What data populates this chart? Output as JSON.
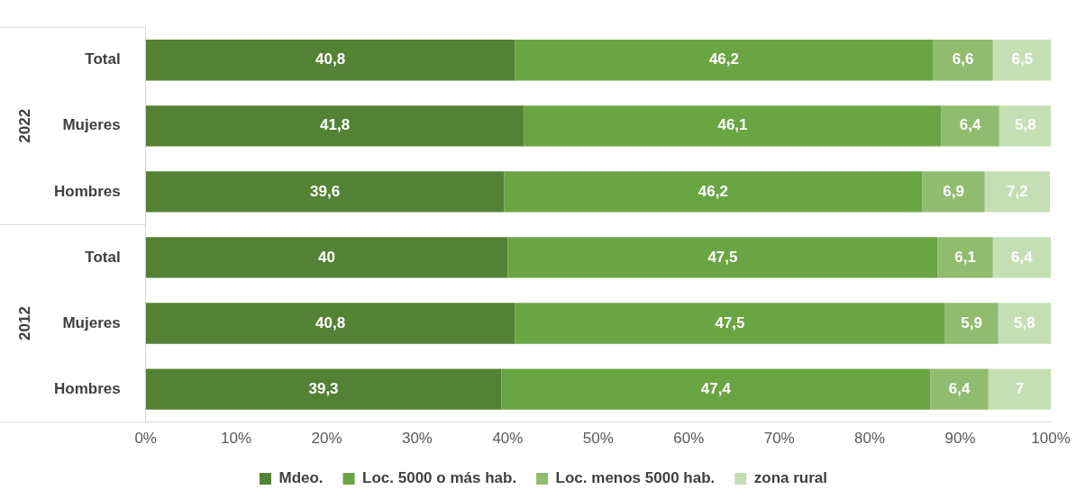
{
  "chart_data": {
    "type": "bar",
    "orientation": "horizontal",
    "stacked": true,
    "categories": [
      "Total",
      "Mujeres",
      "Hombres",
      "Total",
      "Mujeres",
      "Hombres"
    ],
    "series": [
      {
        "name": "Mdeo.",
        "color": "#548235",
        "values": [
          40.8,
          41.8,
          39.6,
          40,
          40.8,
          39.3
        ],
        "value_labels": [
          "40,8",
          "41,8",
          "39,6",
          "40",
          "40,8",
          "39,3"
        ]
      },
      {
        "name": "Loc. 5000 o más hab.",
        "color": "#6aa443",
        "values": [
          46.2,
          46.1,
          46.2,
          47.5,
          47.5,
          47.4
        ],
        "value_labels": [
          "46,2",
          "46,1",
          "46,2",
          "47,5",
          "47,5",
          "47,4"
        ]
      },
      {
        "name": "Loc. menos 5000 hab.",
        "color": "#8fbc6e",
        "values": [
          6.6,
          6.4,
          6.9,
          6.1,
          5.9,
          6.4
        ],
        "value_labels": [
          "6,6",
          "6,4",
          "6,9",
          "6,1",
          "5,9",
          "6,4"
        ]
      },
      {
        "name": "zona rural",
        "color": "#c5dfb4",
        "values": [
          6.5,
          5.8,
          7.2,
          6.4,
          5.8,
          7
        ],
        "value_labels": [
          "6,5",
          "5,8",
          "7,2",
          "6,4",
          "5,8",
          "7"
        ]
      }
    ],
    "annotations": [
      "2022",
      "2012"
    ],
    "xlim": [
      0,
      100
    ],
    "xticks": [
      {
        "value": 0,
        "label": "0%"
      },
      {
        "value": 10,
        "label": "10%"
      },
      {
        "value": 20,
        "label": "20%"
      },
      {
        "value": 30,
        "label": "30%"
      },
      {
        "value": 40,
        "label": "40%"
      },
      {
        "value": 50,
        "label": "50%"
      },
      {
        "value": 60,
        "label": "60%"
      },
      {
        "value": 70,
        "label": "70%"
      },
      {
        "value": 80,
        "label": "80%"
      },
      {
        "value": 90,
        "label": "90%"
      },
      {
        "value": 100,
        "label": "100%"
      }
    ],
    "grid": false,
    "legend": "bottom"
  }
}
